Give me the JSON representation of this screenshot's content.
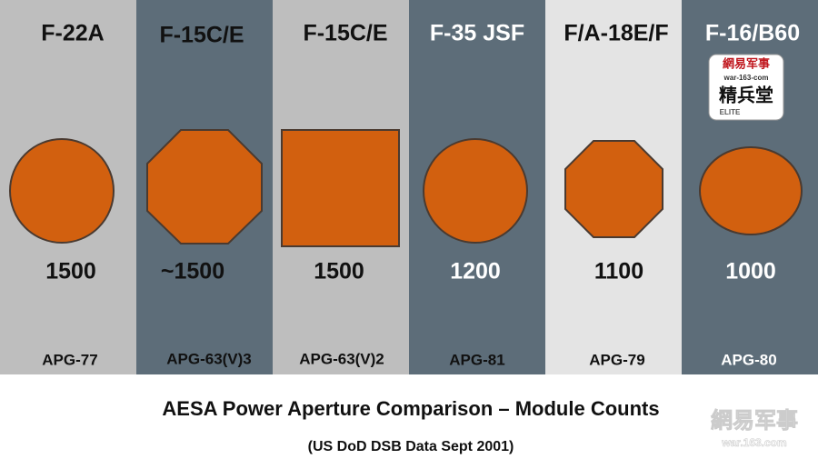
{
  "columns": [
    {
      "name": "F-22A",
      "count": "1500",
      "radar": "APG-77"
    },
    {
      "name": "F-15C/E",
      "count": "~1500",
      "radar": "APG-63(V)3"
    },
    {
      "name": "F-15C/E",
      "count": "1500",
      "radar": "APG-63(V)2"
    },
    {
      "name": "F-35 JSF",
      "count": "1200",
      "radar": "APG-81"
    },
    {
      "name": "F/A-18E/F",
      "count": "1100",
      "radar": "APG-79"
    },
    {
      "name": "F-16/B60",
      "count": "1000",
      "radar": "APG-80"
    }
  ],
  "logo": {
    "brand": "網易军事",
    "site": "war-163-com",
    "name": "精兵堂",
    "tag": "ELITE"
  },
  "title": "AESA Power Aperture Comparison – Module Counts",
  "subtitle": "(US DoD DSB Data Sept 2001)",
  "watermark": {
    "brand": "網易军事",
    "site": "war.163.com"
  }
}
